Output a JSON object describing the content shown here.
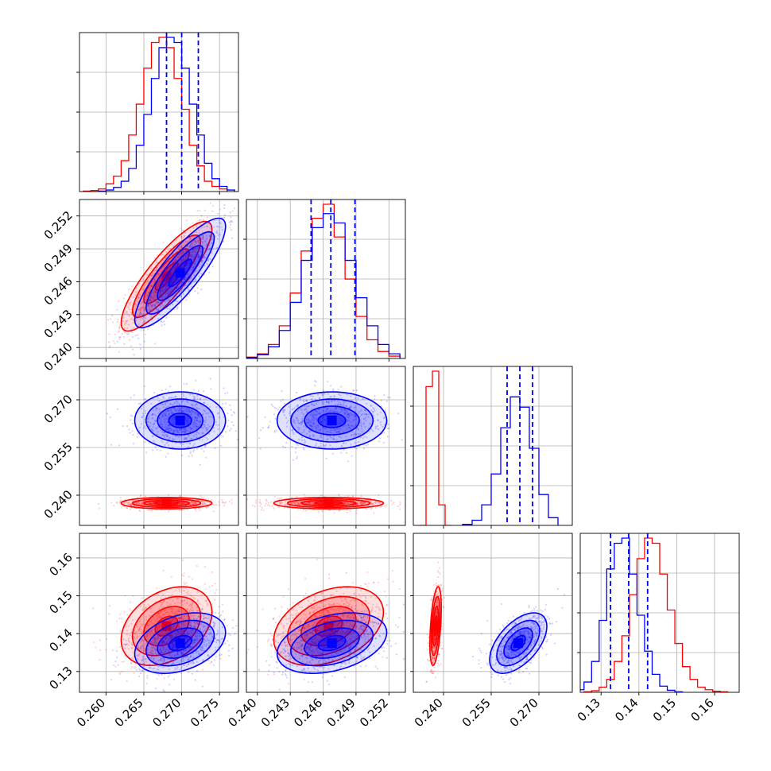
{
  "chart_data": {
    "type": "corner",
    "parameters": [
      {
        "ticks": [
          "0.260",
          "0.265",
          "0.270",
          "0.275"
        ],
        "range": [
          0.2565,
          0.2775
        ]
      },
      {
        "ticks": [
          "0.240",
          "0.243",
          "0.246",
          "0.249",
          "0.252"
        ],
        "range": [
          0.239,
          0.2535
        ]
      },
      {
        "ticks": [
          "0.240",
          "0.255",
          "0.270"
        ],
        "range": [
          0.2305,
          0.2805
        ]
      },
      {
        "ticks": [
          "0.13",
          "0.14",
          "0.15",
          "0.16"
        ],
        "range": [
          0.1245,
          0.1665
        ]
      }
    ],
    "series": [
      {
        "color": "#ff0000",
        "marginals": [
          {
            "bins": [
              0.2575,
              0.2585,
              0.2595,
              0.2605,
              0.2615,
              0.2625,
              0.2635,
              0.2645,
              0.2655,
              0.2665,
              0.2675,
              0.2685,
              0.2695,
              0.2705,
              0.2715,
              0.2725,
              0.2735,
              0.2745,
              0.2755
            ],
            "counts": [
              1,
              2,
              5,
              15,
              30,
              60,
              110,
              170,
              240,
              290,
              300,
              280,
              220,
              160,
              90,
              50,
              20,
              10,
              5
            ]
          },
          {
            "bins": [
              0.2395,
              0.2405,
              0.2415,
              0.2425,
              0.2435,
              0.2445,
              0.2455,
              0.2465,
              0.2475,
              0.2485,
              0.2495,
              0.2505,
              0.2515,
              0.2525
            ],
            "counts": [
              3,
              10,
              30,
              70,
              140,
              230,
              300,
              330,
              260,
              170,
              90,
              40,
              15,
              5
            ]
          },
          {
            "bins": [
              0.2335,
              0.2355,
              0.2375,
              0.2395,
              0.2415
            ],
            "counts": [
              0,
              270,
              300,
              40,
              0
            ]
          },
          {
            "bins": [
              0.1265,
              0.1285,
              0.1305,
              0.1325,
              0.1345,
              0.1365,
              0.1385,
              0.1405,
              0.1425,
              0.1445,
              0.1465,
              0.1485,
              0.1505,
              0.1525,
              0.1545,
              0.1565,
              0.1585,
              0.1605,
              0.1625
            ],
            "counts": [
              1,
              3,
              10,
              25,
              60,
              110,
              190,
              260,
              300,
              290,
              230,
              160,
              95,
              50,
              25,
              10,
              5,
              2,
              1
            ]
          }
        ],
        "quantiles": [
          [],
          [],
          [],
          []
        ],
        "mean": [
          0.268,
          0.2465,
          0.2375,
          0.142
        ],
        "sigma": [
          0.003,
          0.0025,
          0.0009,
          0.0052
        ],
        "corr": [
          [
            1,
            0.85,
            0,
            0.35
          ],
          [
            0.85,
            1,
            0,
            0.35
          ],
          [
            0,
            0,
            1,
            0.45
          ],
          [
            0.35,
            0.35,
            0.45,
            1
          ]
        ]
      },
      {
        "color": "#0000ff",
        "marginals": [
          {
            "bins": [
              0.2595,
              0.2605,
              0.2615,
              0.2625,
              0.2635,
              0.2645,
              0.2655,
              0.2665,
              0.2675,
              0.2685,
              0.2695,
              0.2705,
              0.2715,
              0.2725,
              0.2735,
              0.2745,
              0.2755,
              0.2765
            ],
            "counts": [
              1,
              3,
              8,
              20,
              45,
              90,
              150,
              220,
              280,
              300,
              290,
              240,
              170,
              110,
              55,
              25,
              10,
              3
            ]
          },
          {
            "bins": [
              0.2395,
              0.2405,
              0.2415,
              0.2425,
              0.2435,
              0.2445,
              0.2455,
              0.2465,
              0.2475,
              0.2485,
              0.2495,
              0.2505,
              0.2515,
              0.2525
            ],
            "counts": [
              2,
              8,
              25,
              60,
              120,
              210,
              280,
              310,
              290,
              210,
              130,
              70,
              30,
              10
            ]
          },
          {
            "bins": [
              0.2475,
              0.2505,
              0.2535,
              0.2565,
              0.2595,
              0.2625,
              0.2655,
              0.2685,
              0.2715,
              0.2745
            ],
            "counts": [
              2,
              10,
              40,
              100,
              190,
              250,
              230,
              150,
              60,
              15
            ]
          },
          {
            "bins": [
              0.1245,
              0.1265,
              0.1285,
              0.1305,
              0.1325,
              0.1345,
              0.1365,
              0.1385,
              0.1405,
              0.1425,
              0.1445,
              0.1465,
              0.1485,
              0.1505
            ],
            "counts": [
              5,
              20,
              60,
              140,
              240,
              290,
              300,
              230,
              150,
              80,
              35,
              12,
              4,
              1
            ]
          }
        ],
        "quantiles": [
          [
            0.268,
            0.27,
            0.2722
          ],
          [
            0.2449,
            0.2467,
            0.2489
          ],
          [
            0.26,
            0.264,
            0.268
          ],
          [
            0.1325,
            0.1373,
            0.1423
          ]
        ],
        "mean": [
          0.2698,
          0.2468,
          0.2635,
          0.1375
        ],
        "sigma": [
          0.003,
          0.0025,
          0.0045,
          0.004
        ],
        "corr": [
          [
            1,
            0.85,
            0,
            0.35
          ],
          [
            0.85,
            1,
            0,
            0.35
          ],
          [
            0,
            0,
            1,
            0.55
          ],
          [
            0.35,
            0.35,
            0.55,
            1
          ]
        ]
      }
    ],
    "contour_levels_sigma": [
      0.5,
      1.0,
      1.5,
      2.0
    ],
    "grid": true
  }
}
